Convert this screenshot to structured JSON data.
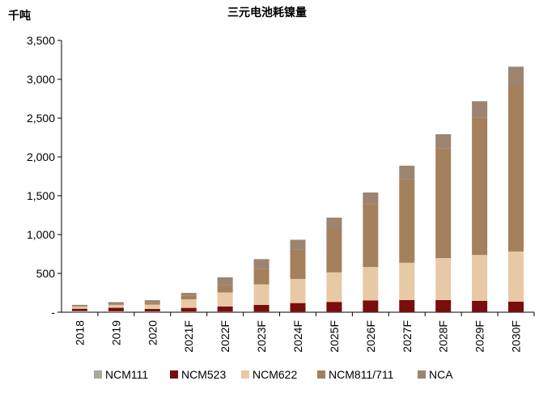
{
  "chart_data": {
    "type": "bar",
    "stacked": true,
    "title": "三元电池耗镍量",
    "unit_label": "千吨",
    "xlabel": "",
    "ylabel": "",
    "categories": [
      "2018",
      "2019",
      "2020",
      "2021F",
      "2022F",
      "2023F",
      "2024F",
      "2025F",
      "2026F",
      "2027F",
      "2028F",
      "2029F",
      "2030F"
    ],
    "ylim": [
      0,
      3500
    ],
    "yticks": [
      0,
      500,
      1000,
      1500,
      2000,
      2500,
      3000,
      3500
    ],
    "ytick_labels": [
      "-",
      "500",
      "1,000",
      "1,500",
      "2,000",
      "2,500",
      "3,000",
      "3,500"
    ],
    "grid": false,
    "legend_position": "bottom",
    "series": [
      {
        "name": "NCM111",
        "color": "#a8a89a",
        "values": [
          15,
          12,
          8,
          6,
          5,
          4,
          3,
          3,
          2,
          2,
          2,
          2,
          2
        ]
      },
      {
        "name": "NCM523",
        "color": "#7a0d0d",
        "values": [
          30,
          45,
          35,
          50,
          70,
          90,
          115,
          130,
          150,
          155,
          155,
          145,
          135
        ]
      },
      {
        "name": "NCM622",
        "color": "#e8c9a6",
        "values": [
          25,
          35,
          55,
          110,
          180,
          265,
          310,
          380,
          430,
          480,
          540,
          590,
          645
        ]
      },
      {
        "name": "NCM811/711",
        "color": "#a4805c",
        "values": [
          5,
          10,
          25,
          45,
          95,
          200,
          375,
          570,
          810,
          1080,
          1410,
          1770,
          2150
        ]
      },
      {
        "name": "NCA",
        "color": "#9c8470",
        "values": [
          20,
          28,
          32,
          38,
          100,
          125,
          130,
          135,
          150,
          170,
          185,
          210,
          230
        ]
      }
    ]
  }
}
